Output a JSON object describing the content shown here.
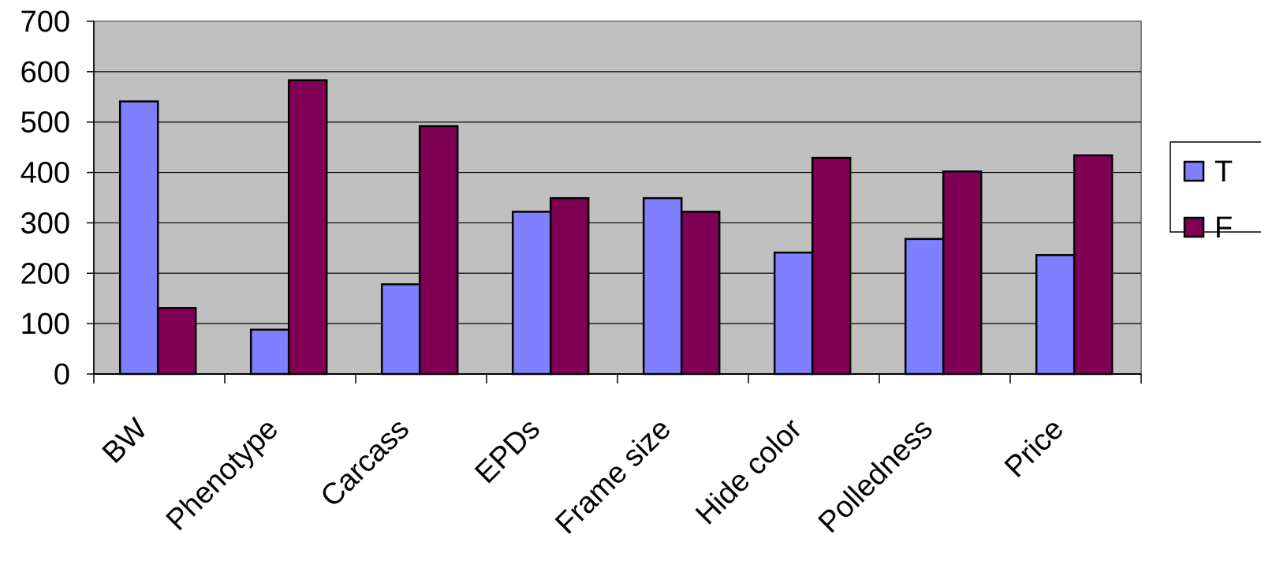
{
  "chart_data": {
    "type": "bar",
    "title": "",
    "xlabel": "",
    "ylabel": "",
    "categories": [
      "BW",
      "Phenotype",
      "Carcass",
      "EPDs",
      "Frame size",
      "Hide color",
      "Polledness",
      "Price"
    ],
    "series": [
      {
        "name": "T",
        "color": "#8080FF",
        "values": [
          541,
          88,
          178,
          322,
          349,
          241,
          268,
          236
        ]
      },
      {
        "name": "F",
        "color": "#800055",
        "values": [
          131,
          583,
          492,
          349,
          322,
          429,
          402,
          434
        ]
      }
    ],
    "ylim": [
      0,
      700
    ],
    "yticks": [
      0,
      100,
      200,
      300,
      400,
      500,
      600,
      700
    ],
    "grid": true,
    "legend": "right",
    "plot_background": "#C0C0C0"
  }
}
